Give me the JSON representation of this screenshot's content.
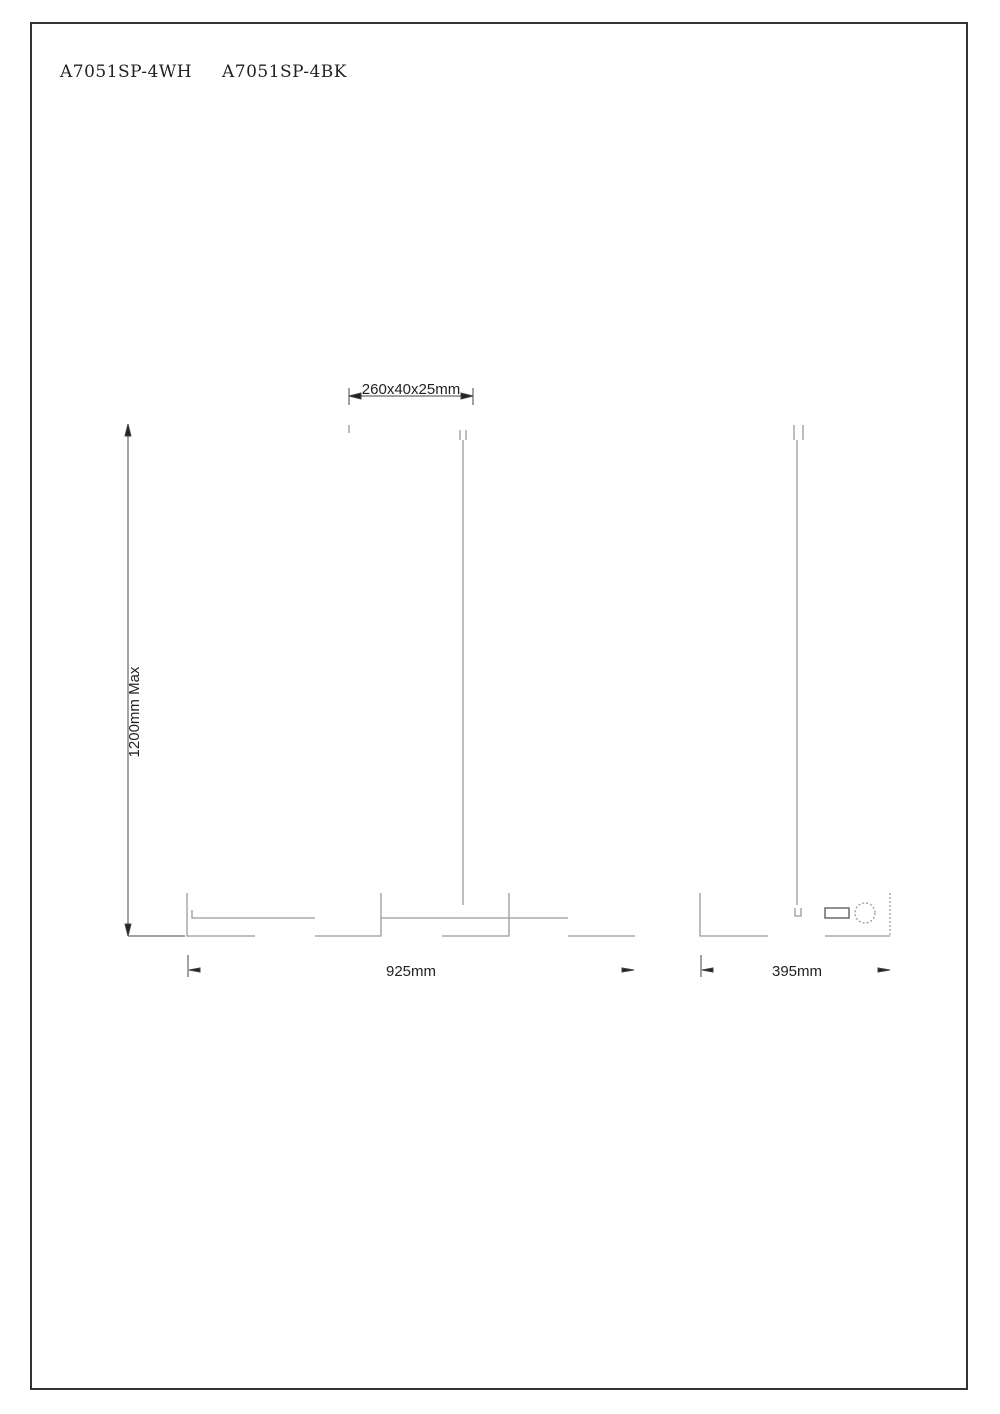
{
  "models": [
    "A7051SP-4WH",
    "A7051SP-4BK"
  ],
  "dimensions": {
    "shade": "260x40x25mm",
    "height": "1200mm Max",
    "length": "925mm",
    "width": "395mm"
  },
  "line_color": "#9a9a9a"
}
